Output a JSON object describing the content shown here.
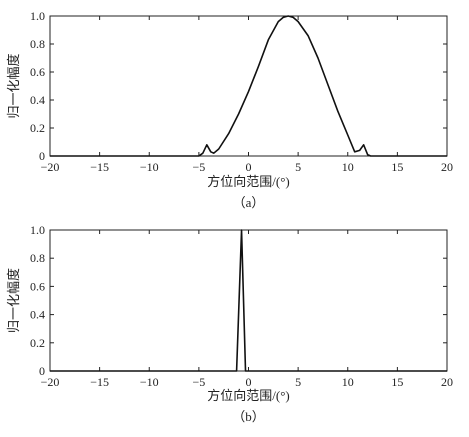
{
  "chart_data": [
    {
      "type": "line",
      "caption": "（a）",
      "xlabel": "方位向范围/(°)",
      "ylabel": "归一化幅度",
      "xlim": [
        -20,
        20
      ],
      "ylim": [
        0,
        1
      ],
      "xticks": [
        "−20",
        "−15",
        "−10",
        "−5",
        "0",
        "5",
        "10",
        "15",
        "20"
      ],
      "yticks": [
        "0",
        "0.2",
        "0.4",
        "0.6",
        "0.8",
        "1.0"
      ],
      "grid": false,
      "series": [
        {
          "values": [
            [
              -20,
              0
            ],
            [
              -5,
              0
            ],
            [
              -4.6,
              0.02
            ],
            [
              -4.2,
              0.08
            ],
            [
              -3.8,
              0.03
            ],
            [
              -3.5,
              0.02
            ],
            [
              -3,
              0.05
            ],
            [
              -2,
              0.16
            ],
            [
              -1,
              0.3
            ],
            [
              0,
              0.46
            ],
            [
              1,
              0.64
            ],
            [
              2,
              0.83
            ],
            [
              3,
              0.96
            ],
            [
              3.5,
              0.99
            ],
            [
              4,
              1.0
            ],
            [
              4.5,
              0.99
            ],
            [
              5,
              0.96
            ],
            [
              6,
              0.86
            ],
            [
              7,
              0.7
            ],
            [
              8,
              0.51
            ],
            [
              9,
              0.32
            ],
            [
              10,
              0.15
            ],
            [
              10.7,
              0.03
            ],
            [
              11.2,
              0.04
            ],
            [
              11.6,
              0.08
            ],
            [
              12,
              0.01
            ],
            [
              12.3,
              0
            ],
            [
              20,
              0
            ]
          ]
        }
      ]
    },
    {
      "type": "line",
      "caption": "（b）",
      "xlabel": "方位向范围/(°)",
      "ylabel": "归一化幅度",
      "xlim": [
        -20,
        20
      ],
      "ylim": [
        0,
        1
      ],
      "xticks": [
        "−20",
        "−15",
        "−10",
        "−5",
        "0",
        "5",
        "10",
        "15",
        "20"
      ],
      "yticks": [
        "0",
        "0.2",
        "0.4",
        "0.6",
        "0.8",
        "1.0"
      ],
      "grid": false,
      "series": [
        {
          "values": [
            [
              -20,
              0
            ],
            [
              -1.2,
              0
            ],
            [
              -0.7,
              1.0
            ],
            [
              -0.3,
              0
            ],
            [
              20,
              0
            ]
          ]
        }
      ]
    }
  ]
}
